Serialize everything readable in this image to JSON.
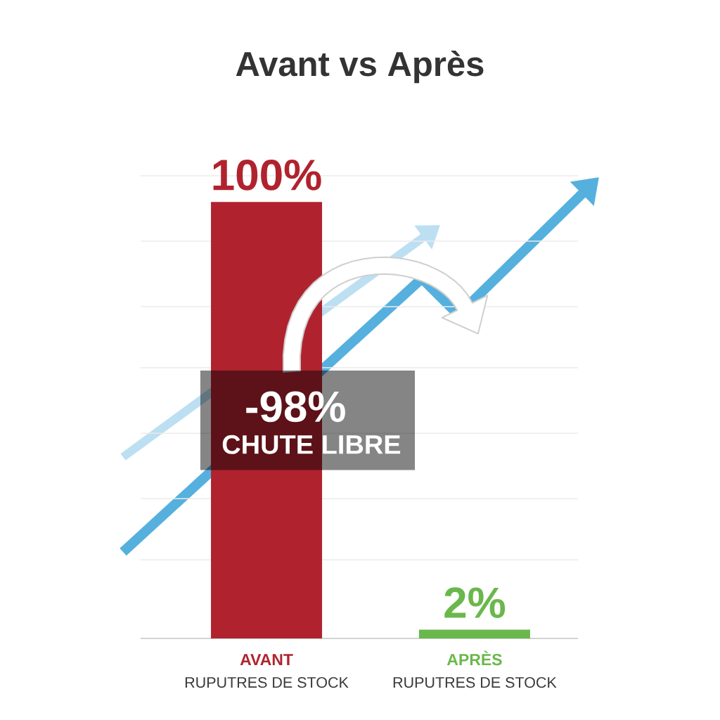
{
  "chart_data": {
    "type": "bar",
    "title": "Avant vs Après",
    "categories": [
      "AVANT",
      "APRÈS"
    ],
    "values": [
      100,
      2
    ],
    "colors": [
      "#b0232e",
      "#6ab84c"
    ],
    "value_labels": [
      "100%",
      "2%"
    ],
    "ylim": [
      0,
      106
    ],
    "yticks": [
      {
        "value": 18,
        "label": null
      },
      {
        "value": 32,
        "label": null
      },
      {
        "value": 47,
        "label": null
      },
      {
        "value": 62,
        "label": null
      },
      {
        "value": 76,
        "label": null
      },
      {
        "value": 91,
        "label": null
      },
      {
        "value": 106,
        "label": null
      }
    ],
    "grid": "y",
    "tick_labels": "x",
    "annotations": [
      "RUPUTRES DE STOCK",
      "RUPUTRES DE STOCK",
      "-98%",
      "CHUTE LIBRE"
    ]
  }
}
